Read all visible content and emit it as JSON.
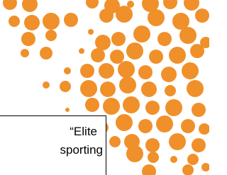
{
  "text_box": {
    "lines": [
      "“Elite",
      "sporting"
    ]
  }
}
